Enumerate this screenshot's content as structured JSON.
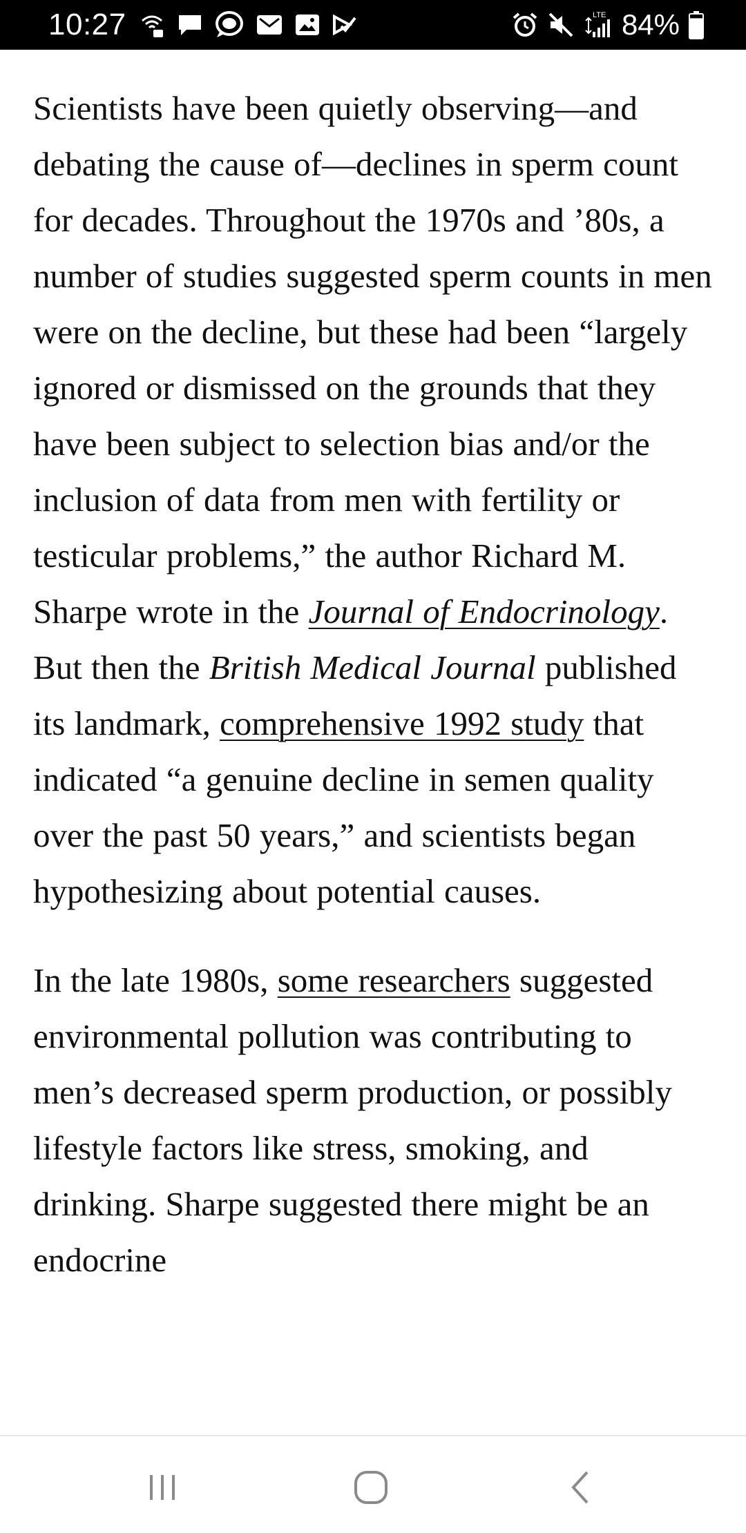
{
  "status_bar": {
    "time": "10:27",
    "left_icons": [
      "wifi-calling-icon",
      "message-icon",
      "chat-bubble-icon",
      "email-icon",
      "gallery-icon",
      "task-check-icon"
    ],
    "right_icons": [
      "alarm-icon",
      "mute-icon",
      "lte-signal-icon",
      "battery-icon"
    ],
    "network_label": "LTE",
    "battery_percent": "84%",
    "battery_level": 0.84
  },
  "article": {
    "p1": {
      "t1": "Scientists have been quietly observing—and debating the cause of—declines in sperm count for decades. Throughout the 1970s and ’80s, a number of studies suggested sperm counts in men were on the decline, but these had been “largely ignored or dismissed on the grounds that they have been subject to selection bias and/or the inclusion of data from men with fertility or testicular problems,” the author Richard M. Sharpe wrote in the ",
      "link1": "Journal of Endocrinology",
      "t2": ". But then the ",
      "em1": "British Medical Journal",
      "t3": " published its landmark, ",
      "link2": "comprehensive 1992 study",
      "t4": " that indicated “a genuine decline in semen quality over the past 50 years,” and scientists began hypothesizing about potential causes."
    },
    "p2": {
      "t1": "In the late 1980s, ",
      "link1": "some researchers",
      "t2": " suggested environmental pollution was contributing to men’s decreased sperm production, or possibly lifestyle factors like stress, smoking, and drinking. Sharpe suggested there might be an endocrine"
    }
  },
  "nav_bar": {
    "buttons": [
      "recents-icon",
      "home-icon",
      "back-icon"
    ]
  },
  "colors": {
    "status_bar_bg": "#000000",
    "text": "#111111",
    "nav_icon": "#8a8a8a",
    "background": "#ffffff"
  }
}
